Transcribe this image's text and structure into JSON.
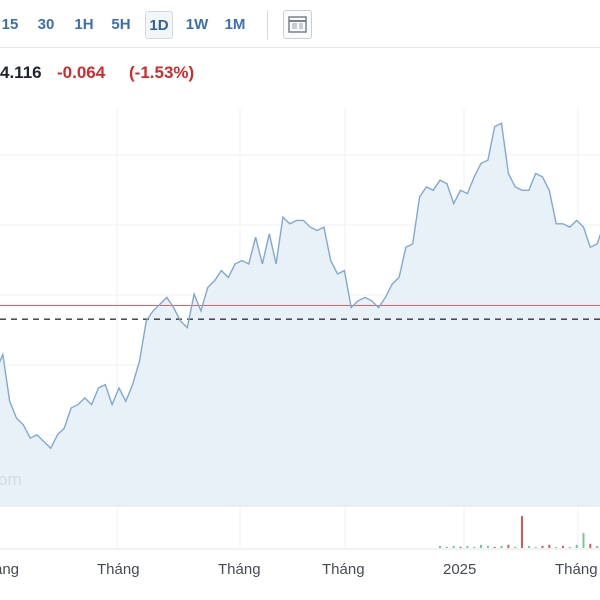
{
  "toolbar": {
    "timeframes": [
      "15",
      "30",
      "1H",
      "5H",
      "1D",
      "1W",
      "1M"
    ],
    "active_timeframe": "1D",
    "layout_icon": "table-layout-icon"
  },
  "quote": {
    "price": "4.116",
    "change": "-0.064",
    "change_pct": "(-1.53%)"
  },
  "watermark": "om",
  "colors": {
    "line": "#7fa9d3",
    "area": "#e8f0f8",
    "last_price_line": "#e06060",
    "dashed_line": "#333333",
    "up_volume": "#7cc59a",
    "down_volume": "#d05a5a",
    "negative": "#d12b2b",
    "accent": "#3b6fb0"
  },
  "chart_data": {
    "type": "area",
    "x_labels": [
      "ang",
      "Tháng",
      "Tháng",
      "Tháng",
      "2025",
      "Tháng"
    ],
    "y_range": [
      0,
      100
    ],
    "grid": true,
    "reference_lines": [
      {
        "style": "solid",
        "color": "#e06060",
        "value": 50.6
      },
      {
        "style": "dashed",
        "color": "#333333",
        "value": 46.5
      }
    ],
    "series": [
      {
        "values": [
          31,
          36,
          22,
          17,
          15,
          11,
          12,
          10,
          8,
          12,
          14,
          20,
          21,
          23,
          21,
          26,
          27,
          21,
          26,
          22,
          27,
          34,
          46,
          49,
          51,
          53,
          50,
          46,
          44,
          54,
          49,
          56,
          58,
          61,
          59,
          63,
          64,
          63,
          71,
          63,
          72,
          63,
          77,
          75,
          76,
          76,
          74,
          73,
          74,
          64,
          60,
          61,
          50,
          52,
          53,
          52,
          50,
          53,
          57,
          59,
          68,
          69,
          83,
          86,
          85,
          88,
          87,
          81,
          85,
          84,
          89,
          93,
          94,
          104,
          105,
          90,
          86,
          85,
          85,
          90,
          89,
          85,
          75,
          75,
          74,
          76,
          74,
          68,
          69,
          75
        ]
      }
    ],
    "volume": [
      {
        "x_index": 65,
        "value": 2,
        "dir": "up"
      },
      {
        "x_index": 66,
        "value": 1,
        "dir": "up"
      },
      {
        "x_index": 67,
        "value": 2,
        "dir": "up"
      },
      {
        "x_index": 68,
        "value": 1,
        "dir": "down"
      },
      {
        "x_index": 69,
        "value": 2,
        "dir": "up"
      },
      {
        "x_index": 70,
        "value": 1,
        "dir": "up"
      },
      {
        "x_index": 71,
        "value": 3,
        "dir": "up"
      },
      {
        "x_index": 72,
        "value": 2,
        "dir": "up"
      },
      {
        "x_index": 73,
        "value": 1,
        "dir": "down"
      },
      {
        "x_index": 74,
        "value": 2,
        "dir": "up"
      },
      {
        "x_index": 75,
        "value": 3,
        "dir": "down"
      },
      {
        "x_index": 76,
        "value": 1,
        "dir": "up"
      },
      {
        "x_index": 77,
        "value": 30,
        "dir": "down"
      },
      {
        "x_index": 78,
        "value": 2,
        "dir": "up"
      },
      {
        "x_index": 79,
        "value": 1,
        "dir": "up"
      },
      {
        "x_index": 80,
        "value": 2,
        "dir": "down"
      },
      {
        "x_index": 81,
        "value": 3,
        "dir": "down"
      },
      {
        "x_index": 82,
        "value": 1,
        "dir": "up"
      },
      {
        "x_index": 83,
        "value": 2,
        "dir": "down"
      },
      {
        "x_index": 84,
        "value": 1,
        "dir": "up"
      },
      {
        "x_index": 85,
        "value": 3,
        "dir": "up"
      },
      {
        "x_index": 86,
        "value": 14,
        "dir": "up"
      },
      {
        "x_index": 87,
        "value": 4,
        "dir": "down"
      },
      {
        "x_index": 88,
        "value": 2,
        "dir": "up"
      },
      {
        "x_index": 89,
        "value": 3,
        "dir": "up"
      }
    ],
    "volume_range": [
      0,
      32
    ]
  }
}
